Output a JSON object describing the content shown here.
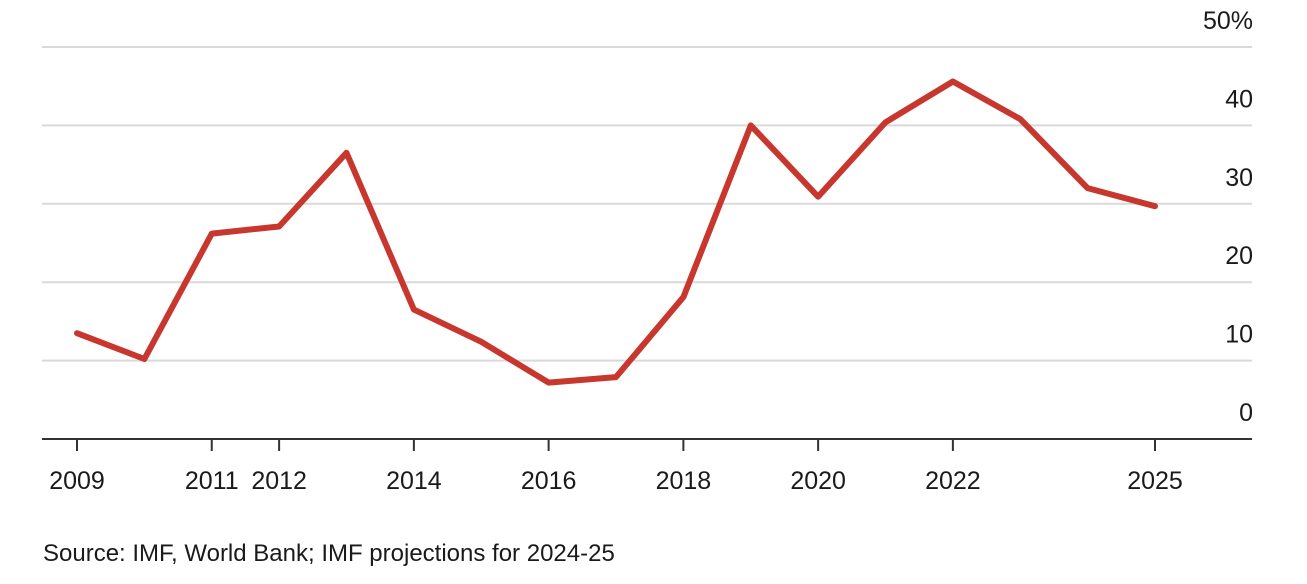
{
  "chart_data": {
    "type": "line",
    "x": [
      2009,
      2010,
      2011,
      2012,
      2013,
      2014,
      2015,
      2016,
      2017,
      2018,
      2019,
      2020,
      2021,
      2022,
      2023,
      2024,
      2025
    ],
    "values": [
      13.5,
      10.2,
      26.2,
      27.1,
      36.5,
      16.5,
      12.4,
      7.2,
      7.9,
      18.1,
      40.0,
      30.9,
      40.4,
      45.6,
      40.8,
      32.0,
      29.7
    ],
    "ylim": [
      0,
      50
    ],
    "y_ticks": [
      {
        "value": 0,
        "label": "0"
      },
      {
        "value": 10,
        "label": "10"
      },
      {
        "value": 20,
        "label": "20"
      },
      {
        "value": 30,
        "label": "30"
      },
      {
        "value": 40,
        "label": "40"
      },
      {
        "value": 50,
        "label": "50%"
      }
    ],
    "x_ticks": [
      {
        "value": 2009,
        "label": "2009"
      },
      {
        "value": 2011,
        "label": "2011"
      },
      {
        "value": 2012,
        "label": "2012"
      },
      {
        "value": 2014,
        "label": "2014"
      },
      {
        "value": 2016,
        "label": "2016"
      },
      {
        "value": 2018,
        "label": "2018"
      },
      {
        "value": 2020,
        "label": "2020"
      },
      {
        "value": 2022,
        "label": "2022"
      },
      {
        "value": 2025,
        "label": "2025"
      }
    ],
    "y_axis_position": "right",
    "grid": true,
    "line_color": "#c8372d"
  },
  "source": "Source: IMF, World Bank; IMF projections for 2024-25"
}
